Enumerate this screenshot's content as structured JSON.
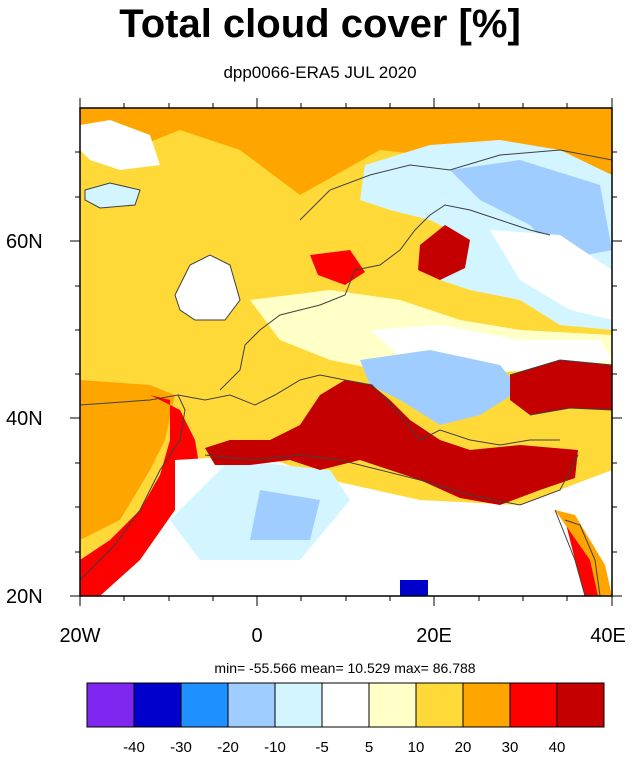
{
  "title": "Total cloud cover [%]",
  "subtitle": "dpp0066-ERA5 JUL 2020",
  "axes": {
    "y_ticks": [
      "20N",
      "40N",
      "60N"
    ],
    "x_ticks": [
      "20W",
      "0",
      "20E",
      "40E"
    ]
  },
  "stats": "min= -55.566  mean=  10.529  max=  86.788",
  "colorbar": {
    "colors": [
      "#7f27f0",
      "#0000cd",
      "#1e90ff",
      "#9fcdff",
      "#d2f5ff",
      "#ffffff",
      "#ffffc8",
      "#ffd938",
      "#ffa500",
      "#ff0000",
      "#c40000"
    ],
    "labels": [
      "-40",
      "-30",
      "-20",
      "-10",
      "-5",
      "5",
      "10",
      "20",
      "30",
      "40"
    ]
  },
  "palette": {
    "sea_deep": "#c40000",
    "red": "#ff0000",
    "orange": "#ffa500",
    "yellow": "#ffd938",
    "pale_yellow": "#ffffc8",
    "white": "#ffffff",
    "light_blue": "#d2f5ff",
    "sky_blue": "#9fcdff",
    "blue": "#1e90ff",
    "dark_blue": "#0000cd",
    "coast": "#404040"
  }
}
